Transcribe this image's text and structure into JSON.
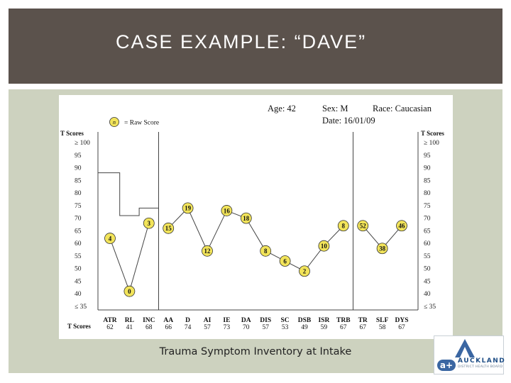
{
  "slide": {
    "title": "CASE EXAMPLE: “DAVE”",
    "caption": "Trauma Symptom Inventory at Intake"
  },
  "logo": {
    "name": "AUCKLAND",
    "subtitle": "DISTRICT HEALTH BOARD",
    "mark_text": "a+"
  },
  "chart_data": {
    "type": "line",
    "header": {
      "age": "Age: 42",
      "sex": "Sex: M",
      "race": "Race: Caucasian",
      "date": "Date: 16/01/09"
    },
    "legend": {
      "symbol": "n",
      "text": "= Raw Score"
    },
    "ylabel_left": "T Scores",
    "ylabel_right": "T Scores",
    "yticks": [
      "≥ 100",
      "95",
      "90",
      "85",
      "80",
      "75",
      "70",
      "65",
      "60",
      "55",
      "50",
      "45",
      "40",
      "≤ 35"
    ],
    "yrange": [
      35,
      100
    ],
    "xlabel_row_label": "T Scores",
    "scales": [
      "ATR",
      "RL",
      "INC",
      "AA",
      "D",
      "AI",
      "IE",
      "DA",
      "DIS",
      "SC",
      "DSB",
      "ISR",
      "TRB",
      "TR",
      "SLF",
      "DYS"
    ],
    "t_scores": [
      62,
      41,
      68,
      66,
      74,
      57,
      73,
      70,
      57,
      53,
      49,
      59,
      67,
      67,
      58,
      67
    ],
    "validity_step_line": [
      {
        "scale": "ATR",
        "value": 88
      },
      {
        "scale": "RL",
        "value": 71
      },
      {
        "scale": "INC",
        "value": 74
      }
    ],
    "series": [
      {
        "segment": "validity",
        "points": [
          {
            "scale": "ATR",
            "value": 62,
            "raw": "4"
          },
          {
            "scale": "RL",
            "value": 41,
            "raw": "0"
          },
          {
            "scale": "INC",
            "value": 68,
            "raw": "3"
          }
        ]
      },
      {
        "segment": "clinical",
        "points": [
          {
            "scale": "AA",
            "value": 66,
            "raw": "15"
          },
          {
            "scale": "D",
            "value": 74,
            "raw": "19"
          },
          {
            "scale": "AI",
            "value": 57,
            "raw": "12"
          },
          {
            "scale": "IE",
            "value": 73,
            "raw": "16"
          },
          {
            "scale": "DA",
            "value": 70,
            "raw": "18"
          },
          {
            "scale": "DIS",
            "value": 57,
            "raw": "8"
          },
          {
            "scale": "SC",
            "value": 53,
            "raw": "6"
          },
          {
            "scale": "DSB",
            "value": 49,
            "raw": "2"
          },
          {
            "scale": "ISR",
            "value": 59,
            "raw": "10"
          },
          {
            "scale": "TRB",
            "value": 67,
            "raw": "8"
          }
        ]
      },
      {
        "segment": "summary",
        "points": [
          {
            "scale": "TR",
            "value": 67,
            "raw": "52"
          },
          {
            "scale": "SLF",
            "value": 58,
            "raw": "38"
          },
          {
            "scale": "DYS",
            "value": 67,
            "raw": "46"
          }
        ]
      }
    ],
    "divider_after": [
      "INC",
      "TRB"
    ]
  }
}
